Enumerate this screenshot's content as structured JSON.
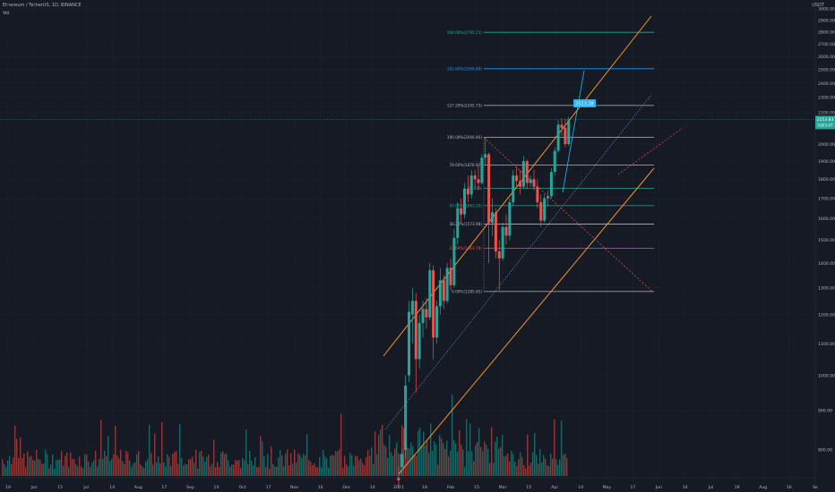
{
  "header": {
    "symbol_line": "Ethereum / TetherUS, 1D, BINANCE",
    "volume_label": "Vol",
    "currency": "USDT"
  },
  "chart_data": {
    "type": "candlestick",
    "x_ticks": [
      "19",
      "Jun",
      "15",
      "Jul",
      "14",
      "Aug",
      "17",
      "Sep",
      "14",
      "Oct",
      "17",
      "Nov",
      "16",
      "Dec",
      "14",
      "2021",
      "18",
      "Feb",
      "15",
      "Mar",
      "15",
      "Apr",
      "14",
      "May",
      "17",
      "Jun",
      "14",
      "Jul",
      "19",
      "Aug",
      "16",
      "Se"
    ],
    "y_ticks": [
      3000,
      2900,
      2800,
      2700,
      2600,
      2500,
      2400,
      2300,
      2200,
      2100,
      2000,
      1900,
      1800,
      1700,
      1600,
      1500,
      1400,
      1300,
      1200,
      1100,
      1000,
      900,
      800
    ],
    "y_scale": "log",
    "ylim": [
      760,
      3080
    ],
    "last_price": {
      "value": "2153.83",
      "sub": "5d23:47"
    },
    "target_label": "2513.28",
    "fib_levels": [
      {
        "label": "200.00%(2795.21)",
        "value": 2795.21,
        "color": "#26a69a"
      },
      {
        "label": "161.80%(2506.89)",
        "value": 2506.89,
        "color": "#2196f3"
      },
      {
        "label": "127.20%(2245.73)",
        "value": 2245.73,
        "color": "#b2b5be"
      },
      {
        "label": "100.00%(2040.46)",
        "value": 2040.46,
        "color": "#b2b5be"
      },
      {
        "label": "78.60%(1878.97)",
        "value": 1878.97,
        "color": "#b2b5be"
      },
      {
        "label": "61.80%",
        "value": 1752.2,
        "color": "#26a69a"
      },
      {
        "label": "50.00%(1663.20)",
        "value": 1663.2,
        "color": "#26a69a"
      },
      {
        "label": "38.20%(1573.98)",
        "value": 1573.98,
        "color": "#b2b5be"
      },
      {
        "label": "23.60%(1463.79)",
        "value": 1463.79,
        "color": "#ef5350"
      },
      {
        "label": "0.00%(1285.65)",
        "value": 1285.65,
        "color": "#b2b5be"
      }
    ],
    "candles": [
      {
        "date": "2021-01-01",
        "o": 737,
        "h": 760,
        "l": 715,
        "c": 730
      },
      {
        "date": "2021-01-03",
        "o": 760,
        "h": 800,
        "l": 740,
        "c": 790
      },
      {
        "date": "2021-01-05",
        "o": 800,
        "h": 1000,
        "l": 780,
        "c": 970
      },
      {
        "date": "2021-01-07",
        "o": 1000,
        "h": 1250,
        "l": 980,
        "c": 1210
      },
      {
        "date": "2021-01-09",
        "o": 1200,
        "h": 1300,
        "l": 1100,
        "c": 1250
      },
      {
        "date": "2021-01-11",
        "o": 1250,
        "h": 1280,
        "l": 950,
        "c": 1050
      },
      {
        "date": "2021-01-13",
        "o": 1050,
        "h": 1200,
        "l": 1020,
        "c": 1170
      },
      {
        "date": "2021-01-15",
        "o": 1170,
        "h": 1250,
        "l": 1120,
        "c": 1220
      },
      {
        "date": "2021-01-17",
        "o": 1220,
        "h": 1260,
        "l": 1150,
        "c": 1190
      },
      {
        "date": "2021-01-19",
        "o": 1190,
        "h": 1400,
        "l": 1180,
        "c": 1370
      },
      {
        "date": "2021-01-21",
        "o": 1370,
        "h": 1390,
        "l": 1050,
        "c": 1120
      },
      {
        "date": "2021-01-23",
        "o": 1120,
        "h": 1250,
        "l": 1100,
        "c": 1230
      },
      {
        "date": "2021-01-25",
        "o": 1230,
        "h": 1380,
        "l": 1200,
        "c": 1330
      },
      {
        "date": "2021-01-27",
        "o": 1330,
        "h": 1350,
        "l": 1220,
        "c": 1250
      },
      {
        "date": "2021-01-29",
        "o": 1250,
        "h": 1400,
        "l": 1240,
        "c": 1380
      },
      {
        "date": "2021-01-31",
        "o": 1380,
        "h": 1420,
        "l": 1290,
        "c": 1310
      },
      {
        "date": "2021-02-02",
        "o": 1310,
        "h": 1550,
        "l": 1300,
        "c": 1510
      },
      {
        "date": "2021-02-04",
        "o": 1510,
        "h": 1680,
        "l": 1480,
        "c": 1650
      },
      {
        "date": "2021-02-06",
        "o": 1650,
        "h": 1700,
        "l": 1580,
        "c": 1620
      },
      {
        "date": "2021-02-08",
        "o": 1620,
        "h": 1780,
        "l": 1600,
        "c": 1750
      },
      {
        "date": "2021-02-10",
        "o": 1750,
        "h": 1820,
        "l": 1680,
        "c": 1720
      },
      {
        "date": "2021-02-12",
        "o": 1720,
        "h": 1850,
        "l": 1700,
        "c": 1820
      },
      {
        "date": "2021-02-14",
        "o": 1820,
        "h": 1850,
        "l": 1760,
        "c": 1800
      },
      {
        "date": "2021-02-16",
        "o": 1800,
        "h": 1880,
        "l": 1740,
        "c": 1780
      },
      {
        "date": "2021-02-18",
        "o": 1780,
        "h": 1940,
        "l": 1770,
        "c": 1920
      },
      {
        "date": "2021-02-20",
        "o": 1920,
        "h": 2040,
        "l": 1880,
        "c": 1940
      },
      {
        "date": "2021-02-22",
        "o": 1940,
        "h": 1950,
        "l": 1400,
        "c": 1580
      },
      {
        "date": "2021-02-24",
        "o": 1580,
        "h": 1700,
        "l": 1520,
        "c": 1630
      },
      {
        "date": "2021-02-26",
        "o": 1630,
        "h": 1650,
        "l": 1420,
        "c": 1450
      },
      {
        "date": "2021-02-28",
        "o": 1450,
        "h": 1500,
        "l": 1290,
        "c": 1420
      },
      {
        "date": "2021-03-02",
        "o": 1420,
        "h": 1580,
        "l": 1410,
        "c": 1560
      },
      {
        "date": "2021-03-04",
        "o": 1560,
        "h": 1620,
        "l": 1480,
        "c": 1520
      },
      {
        "date": "2021-03-06",
        "o": 1520,
        "h": 1700,
        "l": 1500,
        "c": 1680
      },
      {
        "date": "2021-03-08",
        "o": 1680,
        "h": 1850,
        "l": 1660,
        "c": 1820
      },
      {
        "date": "2021-03-10",
        "o": 1820,
        "h": 1870,
        "l": 1760,
        "c": 1790
      },
      {
        "date": "2021-03-12",
        "o": 1790,
        "h": 1850,
        "l": 1720,
        "c": 1760
      },
      {
        "date": "2021-03-14",
        "o": 1760,
        "h": 1930,
        "l": 1750,
        "c": 1900
      },
      {
        "date": "2021-03-16",
        "o": 1900,
        "h": 1910,
        "l": 1750,
        "c": 1780
      },
      {
        "date": "2021-03-18",
        "o": 1780,
        "h": 1820,
        "l": 1760,
        "c": 1800
      },
      {
        "date": "2021-03-20",
        "o": 1800,
        "h": 1850,
        "l": 1740,
        "c": 1760
      },
      {
        "date": "2021-03-22",
        "o": 1760,
        "h": 1800,
        "l": 1650,
        "c": 1680
      },
      {
        "date": "2021-03-24",
        "o": 1680,
        "h": 1720,
        "l": 1560,
        "c": 1590
      },
      {
        "date": "2021-03-26",
        "o": 1590,
        "h": 1720,
        "l": 1580,
        "c": 1700
      },
      {
        "date": "2021-03-28",
        "o": 1700,
        "h": 1740,
        "l": 1660,
        "c": 1710
      },
      {
        "date": "2021-03-30",
        "o": 1710,
        "h": 1860,
        "l": 1700,
        "c": 1840
      },
      {
        "date": "2021-04-01",
        "o": 1840,
        "h": 1980,
        "l": 1820,
        "c": 1960
      },
      {
        "date": "2021-04-03",
        "o": 1960,
        "h": 2150,
        "l": 1950,
        "c": 2120
      },
      {
        "date": "2021-04-05",
        "o": 2120,
        "h": 2160,
        "l": 2050,
        "c": 2100
      },
      {
        "date": "2021-04-07",
        "o": 2100,
        "h": 2160,
        "l": 1980,
        "c": 2000
      },
      {
        "date": "2021-04-09",
        "o": 2000,
        "h": 2170,
        "l": 1990,
        "c": 2153
      }
    ]
  }
}
